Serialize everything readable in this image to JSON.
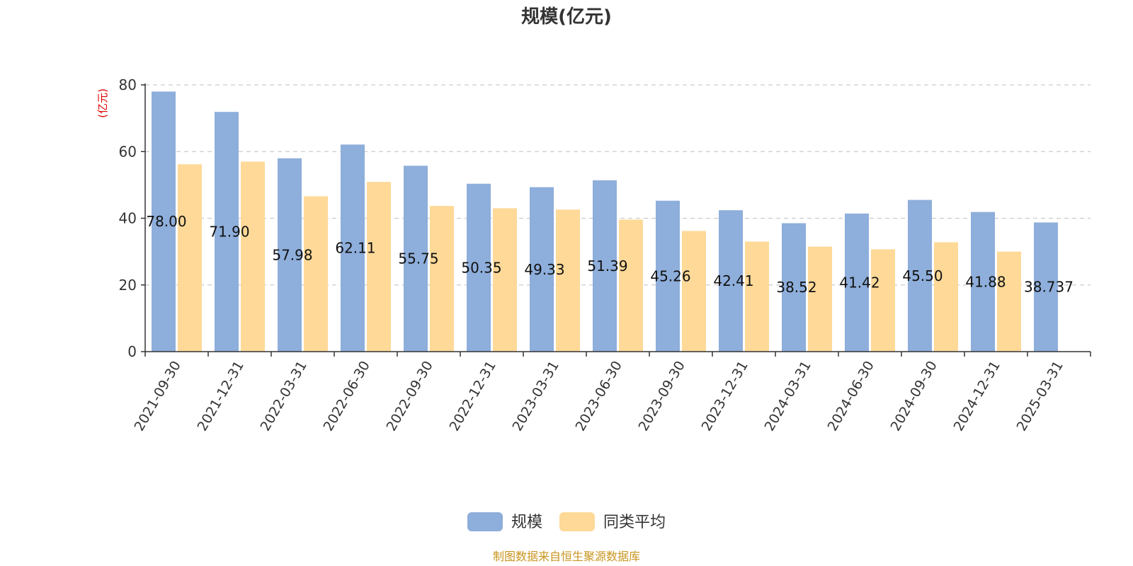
{
  "chart_data": {
    "type": "bar",
    "title": "规模(亿元)",
    "ylabel": "(亿元)",
    "ylim": [
      0,
      80
    ],
    "yticks": [
      0,
      20,
      40,
      60,
      80
    ],
    "grid": true,
    "legend_position": "bottom-center",
    "categories": [
      "2021-09-30",
      "2021-12-31",
      "2022-03-31",
      "2022-06-30",
      "2022-09-30",
      "2022-12-31",
      "2023-03-31",
      "2023-06-30",
      "2023-09-30",
      "2023-12-31",
      "2024-03-31",
      "2024-06-30",
      "2024-09-30",
      "2024-12-31",
      "2025-03-31"
    ],
    "series": [
      {
        "name": "规模",
        "color": "#8eaedb",
        "values": [
          78.0,
          71.9,
          57.98,
          62.11,
          55.75,
          50.35,
          49.33,
          51.39,
          45.26,
          42.41,
          38.52,
          41.42,
          45.5,
          41.88,
          38.737
        ],
        "labels": [
          "78.00",
          "71.90",
          "57.98",
          "62.11",
          "55.75",
          "50.35",
          "49.33",
          "51.39",
          "45.26",
          "42.41",
          "38.52",
          "41.42",
          "45.50",
          "41.88",
          "38.737"
        ]
      },
      {
        "name": "同类平均",
        "color": "#fed998",
        "values": [
          56.2,
          57.0,
          46.6,
          50.9,
          43.7,
          43.0,
          42.6,
          39.6,
          36.2,
          33.0,
          31.5,
          30.7,
          32.8,
          30.0,
          null
        ]
      }
    ],
    "source": "制图数据来自恒生聚源数据库",
    "source_color": "#c8951e"
  }
}
